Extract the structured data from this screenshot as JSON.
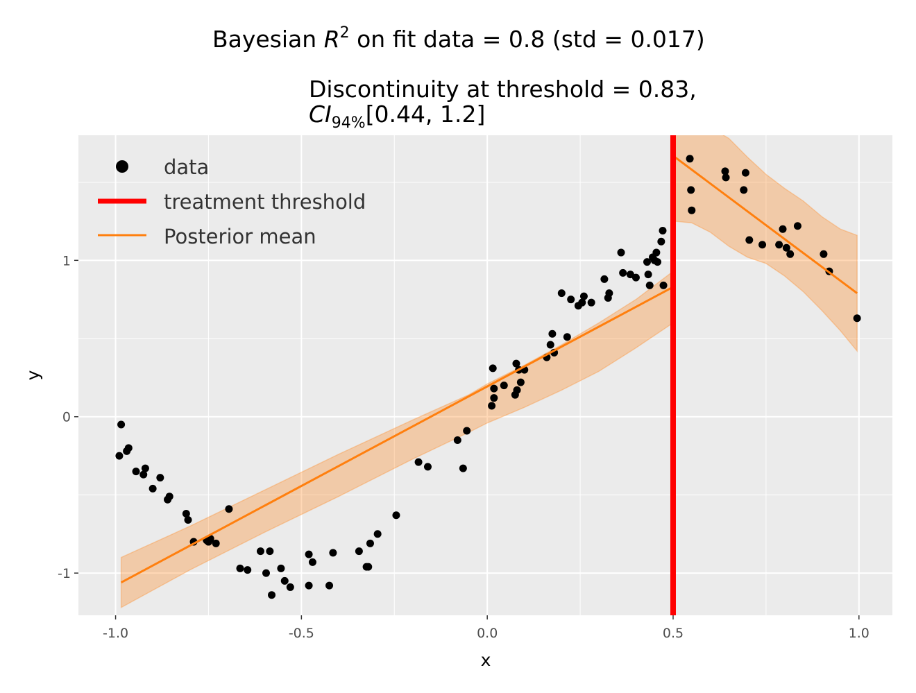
{
  "chart_data": {
    "type": "scatter",
    "title_line1_prefix": "Bayesian ",
    "title_line1_math": "R",
    "title_line1_sup": "2",
    "title_line1_suffix": " on fit data = 0.8 (std = 0.017)",
    "title_line2": "Discontinuity at threshold = 0.83,",
    "title_line3_ci": "CI",
    "title_line3_sub": "94%",
    "title_line3_rest": "[0.44, 1.2]",
    "xlabel": "x",
    "ylabel": "y",
    "xlim": [
      -1.1,
      1.09
    ],
    "ylim": [
      -1.27,
      1.8
    ],
    "x_ticks": [
      -1.0,
      -0.5,
      0.0,
      0.5,
      1.0
    ],
    "x_tick_labels": [
      "-1.0",
      "-0.5",
      "0.0",
      "0.5",
      "1.0"
    ],
    "y_ticks": [
      -1,
      0,
      1
    ],
    "y_tick_labels": [
      "-1",
      "0",
      "1"
    ],
    "grid": true,
    "legend_placement": "top-left",
    "legend": {
      "data_label": "data",
      "threshold_label": "treatment threshold",
      "posterior_label": "Posterior mean"
    },
    "colors": {
      "panel_bg": "#ebebeb",
      "grid": "#ffffff",
      "points": "#000000",
      "threshold": "#ff0000",
      "posterior": "#ff7f0e",
      "band": "#ff7f0e"
    },
    "threshold_x": 0.5,
    "points": [
      [
        -0.99,
        -0.25
      ],
      [
        -0.985,
        -0.05
      ],
      [
        -0.97,
        -0.22
      ],
      [
        -0.965,
        -0.2
      ],
      [
        -0.945,
        -0.35
      ],
      [
        -0.925,
        -0.37
      ],
      [
        -0.92,
        -0.33
      ],
      [
        -0.9,
        -0.46
      ],
      [
        -0.88,
        -0.39
      ],
      [
        -0.86,
        -0.53
      ],
      [
        -0.855,
        -0.51
      ],
      [
        -0.81,
        -0.62
      ],
      [
        -0.805,
        -0.66
      ],
      [
        -0.79,
        -0.8
      ],
      [
        -0.755,
        -0.79
      ],
      [
        -0.75,
        -0.8
      ],
      [
        -0.745,
        -0.78
      ],
      [
        -0.73,
        -0.81
      ],
      [
        -0.695,
        -0.59
      ],
      [
        -0.665,
        -0.97
      ],
      [
        -0.645,
        -0.98
      ],
      [
        -0.61,
        -0.86
      ],
      [
        -0.595,
        -1.0
      ],
      [
        -0.585,
        -0.86
      ],
      [
        -0.58,
        -1.14
      ],
      [
        -0.555,
        -0.97
      ],
      [
        -0.545,
        -1.05
      ],
      [
        -0.53,
        -1.09
      ],
      [
        -0.48,
        -1.08
      ],
      [
        -0.48,
        -0.88
      ],
      [
        -0.47,
        -0.93
      ],
      [
        -0.425,
        -1.08
      ],
      [
        -0.415,
        -0.87
      ],
      [
        -0.345,
        -0.86
      ],
      [
        -0.325,
        -0.96
      ],
      [
        -0.32,
        -0.96
      ],
      [
        -0.315,
        -0.81
      ],
      [
        -0.295,
        -0.75
      ],
      [
        -0.245,
        -0.63
      ],
      [
        -0.185,
        -0.29
      ],
      [
        -0.16,
        -0.32
      ],
      [
        -0.08,
        -0.15
      ],
      [
        -0.065,
        -0.33
      ],
      [
        -0.055,
        -0.09
      ],
      [
        0.012,
        0.07
      ],
      [
        0.015,
        0.31
      ],
      [
        0.018,
        0.12
      ],
      [
        0.018,
        0.18
      ],
      [
        0.045,
        0.2
      ],
      [
        0.075,
        0.14
      ],
      [
        0.078,
        0.34
      ],
      [
        0.08,
        0.17
      ],
      [
        0.085,
        0.3
      ],
      [
        0.09,
        0.22
      ],
      [
        0.1,
        0.3
      ],
      [
        0.16,
        0.38
      ],
      [
        0.17,
        0.46
      ],
      [
        0.175,
        0.53
      ],
      [
        0.18,
        0.41
      ],
      [
        0.2,
        0.79
      ],
      [
        0.215,
        0.51
      ],
      [
        0.225,
        0.75
      ],
      [
        0.245,
        0.71
      ],
      [
        0.255,
        0.73
      ],
      [
        0.26,
        0.77
      ],
      [
        0.28,
        0.73
      ],
      [
        0.315,
        0.88
      ],
      [
        0.325,
        0.76
      ],
      [
        0.328,
        0.79
      ],
      [
        0.36,
        1.05
      ],
      [
        0.365,
        0.92
      ],
      [
        0.385,
        0.91
      ],
      [
        0.4,
        0.89
      ],
      [
        0.43,
        0.99
      ],
      [
        0.433,
        0.91
      ],
      [
        0.437,
        0.84
      ],
      [
        0.445,
        1.02
      ],
      [
        0.45,
        1.0
      ],
      [
        0.455,
        1.05
      ],
      [
        0.458,
        0.99
      ],
      [
        0.468,
        1.12
      ],
      [
        0.472,
        1.19
      ],
      [
        0.474,
        0.84
      ],
      [
        0.545,
        1.65
      ],
      [
        0.548,
        1.45
      ],
      [
        0.55,
        1.32
      ],
      [
        0.64,
        1.57
      ],
      [
        0.642,
        1.53
      ],
      [
        0.69,
        1.45
      ],
      [
        0.695,
        1.56
      ],
      [
        0.705,
        1.13
      ],
      [
        0.74,
        1.1
      ],
      [
        0.785,
        1.1
      ],
      [
        0.795,
        1.2
      ],
      [
        0.805,
        1.08
      ],
      [
        0.815,
        1.04
      ],
      [
        0.835,
        1.22
      ],
      [
        0.905,
        1.04
      ],
      [
        0.92,
        0.93
      ],
      [
        0.995,
        0.63
      ]
    ],
    "posterior_mean_left": [
      [
        -0.985,
        -1.06
      ],
      [
        0.5,
        0.83
      ]
    ],
    "posterior_mean_right": [
      [
        0.505,
        1.66
      ],
      [
        0.995,
        0.79
      ]
    ],
    "band_left_upper": [
      [
        -0.985,
        -0.9
      ],
      [
        -0.8,
        -0.7
      ],
      [
        -0.6,
        -0.47
      ],
      [
        -0.4,
        -0.24
      ],
      [
        -0.2,
        -0.02
      ],
      [
        -0.05,
        0.14
      ],
      [
        0.0,
        0.21
      ],
      [
        0.1,
        0.33
      ],
      [
        0.2,
        0.46
      ],
      [
        0.3,
        0.6
      ],
      [
        0.4,
        0.75
      ],
      [
        0.5,
        0.93
      ]
    ],
    "band_left_lower": [
      [
        -0.985,
        -1.22
      ],
      [
        -0.8,
        -0.98
      ],
      [
        -0.6,
        -0.74
      ],
      [
        -0.4,
        -0.51
      ],
      [
        -0.2,
        -0.27
      ],
      [
        -0.05,
        -0.1
      ],
      [
        0.0,
        -0.04
      ],
      [
        0.1,
        0.06
      ],
      [
        0.2,
        0.17
      ],
      [
        0.3,
        0.29
      ],
      [
        0.4,
        0.44
      ],
      [
        0.5,
        0.6
      ]
    ],
    "band_right_upper": [
      [
        0.505,
        2.02
      ],
      [
        0.55,
        1.95
      ],
      [
        0.6,
        1.85
      ],
      [
        0.65,
        1.78
      ],
      [
        0.7,
        1.66
      ],
      [
        0.75,
        1.55
      ],
      [
        0.8,
        1.46
      ],
      [
        0.85,
        1.38
      ],
      [
        0.9,
        1.28
      ],
      [
        0.95,
        1.2
      ],
      [
        0.995,
        1.16
      ]
    ],
    "band_right_lower": [
      [
        0.505,
        1.25
      ],
      [
        0.55,
        1.24
      ],
      [
        0.6,
        1.18
      ],
      [
        0.65,
        1.09
      ],
      [
        0.7,
        1.02
      ],
      [
        0.75,
        0.98
      ],
      [
        0.8,
        0.9
      ],
      [
        0.85,
        0.8
      ],
      [
        0.9,
        0.68
      ],
      [
        0.95,
        0.55
      ],
      [
        0.995,
        0.42
      ]
    ]
  }
}
